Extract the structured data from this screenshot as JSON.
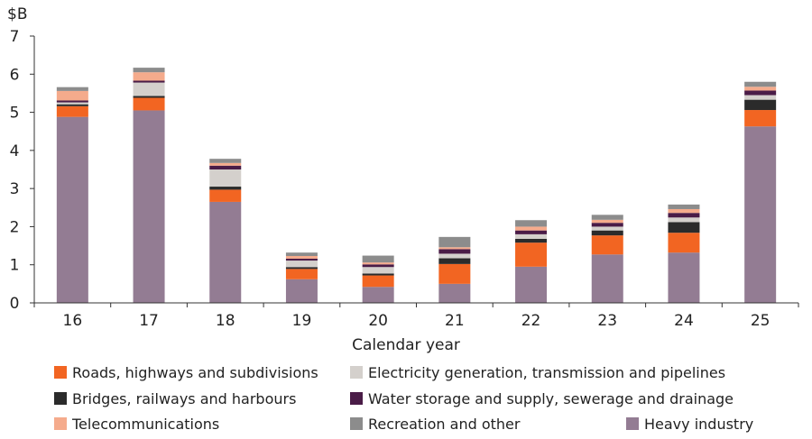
{
  "chart_data": {
    "type": "bar",
    "stacked": true,
    "title": "",
    "unit_label": "$B",
    "xlabel": "Calendar year",
    "ylabel": "$B",
    "ylim": [
      0,
      7
    ],
    "yticks": [
      "0",
      "1",
      "2",
      "3",
      "4",
      "5",
      "6",
      "7"
    ],
    "grid": false,
    "legend_position": "bottom",
    "categories": [
      "16",
      "17",
      "18",
      "19",
      "20",
      "21",
      "22",
      "23",
      "24",
      "25"
    ],
    "series": [
      {
        "name": "Heavy industry",
        "color": "#937c93",
        "values": [
          4.88,
          5.05,
          2.65,
          0.62,
          0.42,
          0.5,
          0.95,
          1.27,
          1.32,
          4.63
        ]
      },
      {
        "name": "Roads, highways and subdivisions",
        "color": "#f26522",
        "values": [
          0.28,
          0.33,
          0.32,
          0.27,
          0.3,
          0.52,
          0.63,
          0.5,
          0.52,
          0.43
        ]
      },
      {
        "name": "Bridges, railways and harbours",
        "color": "#2b2b2b",
        "values": [
          0.05,
          0.05,
          0.08,
          0.05,
          0.05,
          0.15,
          0.1,
          0.13,
          0.28,
          0.27
        ]
      },
      {
        "name": "Electricity generation, transmission and pipelines",
        "color": "#d4d0cc",
        "values": [
          0.05,
          0.35,
          0.45,
          0.17,
          0.17,
          0.12,
          0.12,
          0.1,
          0.12,
          0.12
        ]
      },
      {
        "name": "Water storage and supply, sewerage and drainage",
        "color": "#4a1c47",
        "values": [
          0.05,
          0.05,
          0.1,
          0.05,
          0.07,
          0.12,
          0.1,
          0.1,
          0.12,
          0.12
        ]
      },
      {
        "name": "Telecommunications",
        "color": "#f5ab8c",
        "values": [
          0.25,
          0.22,
          0.07,
          0.07,
          0.05,
          0.05,
          0.1,
          0.08,
          0.1,
          0.1
        ]
      },
      {
        "name": "Recreation and other",
        "color": "#8c8c8c",
        "values": [
          0.1,
          0.12,
          0.11,
          0.09,
          0.18,
          0.27,
          0.17,
          0.13,
          0.12,
          0.13
        ]
      }
    ]
  },
  "legend": [
    {
      "label": "Roads, highways and subdivisions",
      "color": "#f26522"
    },
    {
      "label": "Electricity generation, transmission and pipelines",
      "color": "#d4d0cc"
    },
    {
      "label": "Bridges, railways and harbours",
      "color": "#2b2b2b"
    },
    {
      "label": "Water storage and supply, sewerage and drainage",
      "color": "#4a1c47"
    },
    {
      "label": "Telecommunications",
      "color": "#f5ab8c"
    },
    {
      "label": "Recreation and other",
      "color": "#8c8c8c"
    },
    {
      "label": "Heavy industry",
      "color": "#937c93"
    }
  ]
}
